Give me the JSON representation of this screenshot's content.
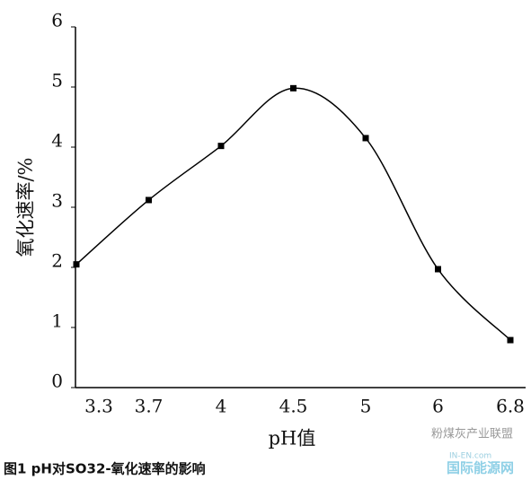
{
  "chart_data": {
    "type": "line",
    "x_label": "pH值",
    "y_label": "氧化速率/%",
    "categories": [
      "3.3",
      "3.7",
      "4",
      "4.5",
      "5",
      "6",
      "6.8"
    ],
    "series": [
      {
        "name": null,
        "color": "#000000",
        "values": [
          2.05,
          3.12,
          4.02,
          4.98,
          4.15,
          1.97,
          0.79
        ]
      }
    ],
    "ylim": [
      0,
      6
    ],
    "yticks": [
      0,
      1,
      2,
      3,
      4,
      5,
      6
    ],
    "smooth": true,
    "marker": "square"
  },
  "figure_caption": "图1  pH对SO32-氧化速率的影响",
  "watermarks": [
    "粉煤灰产业联盟",
    "IN-EN.com",
    "国际能源网"
  ]
}
